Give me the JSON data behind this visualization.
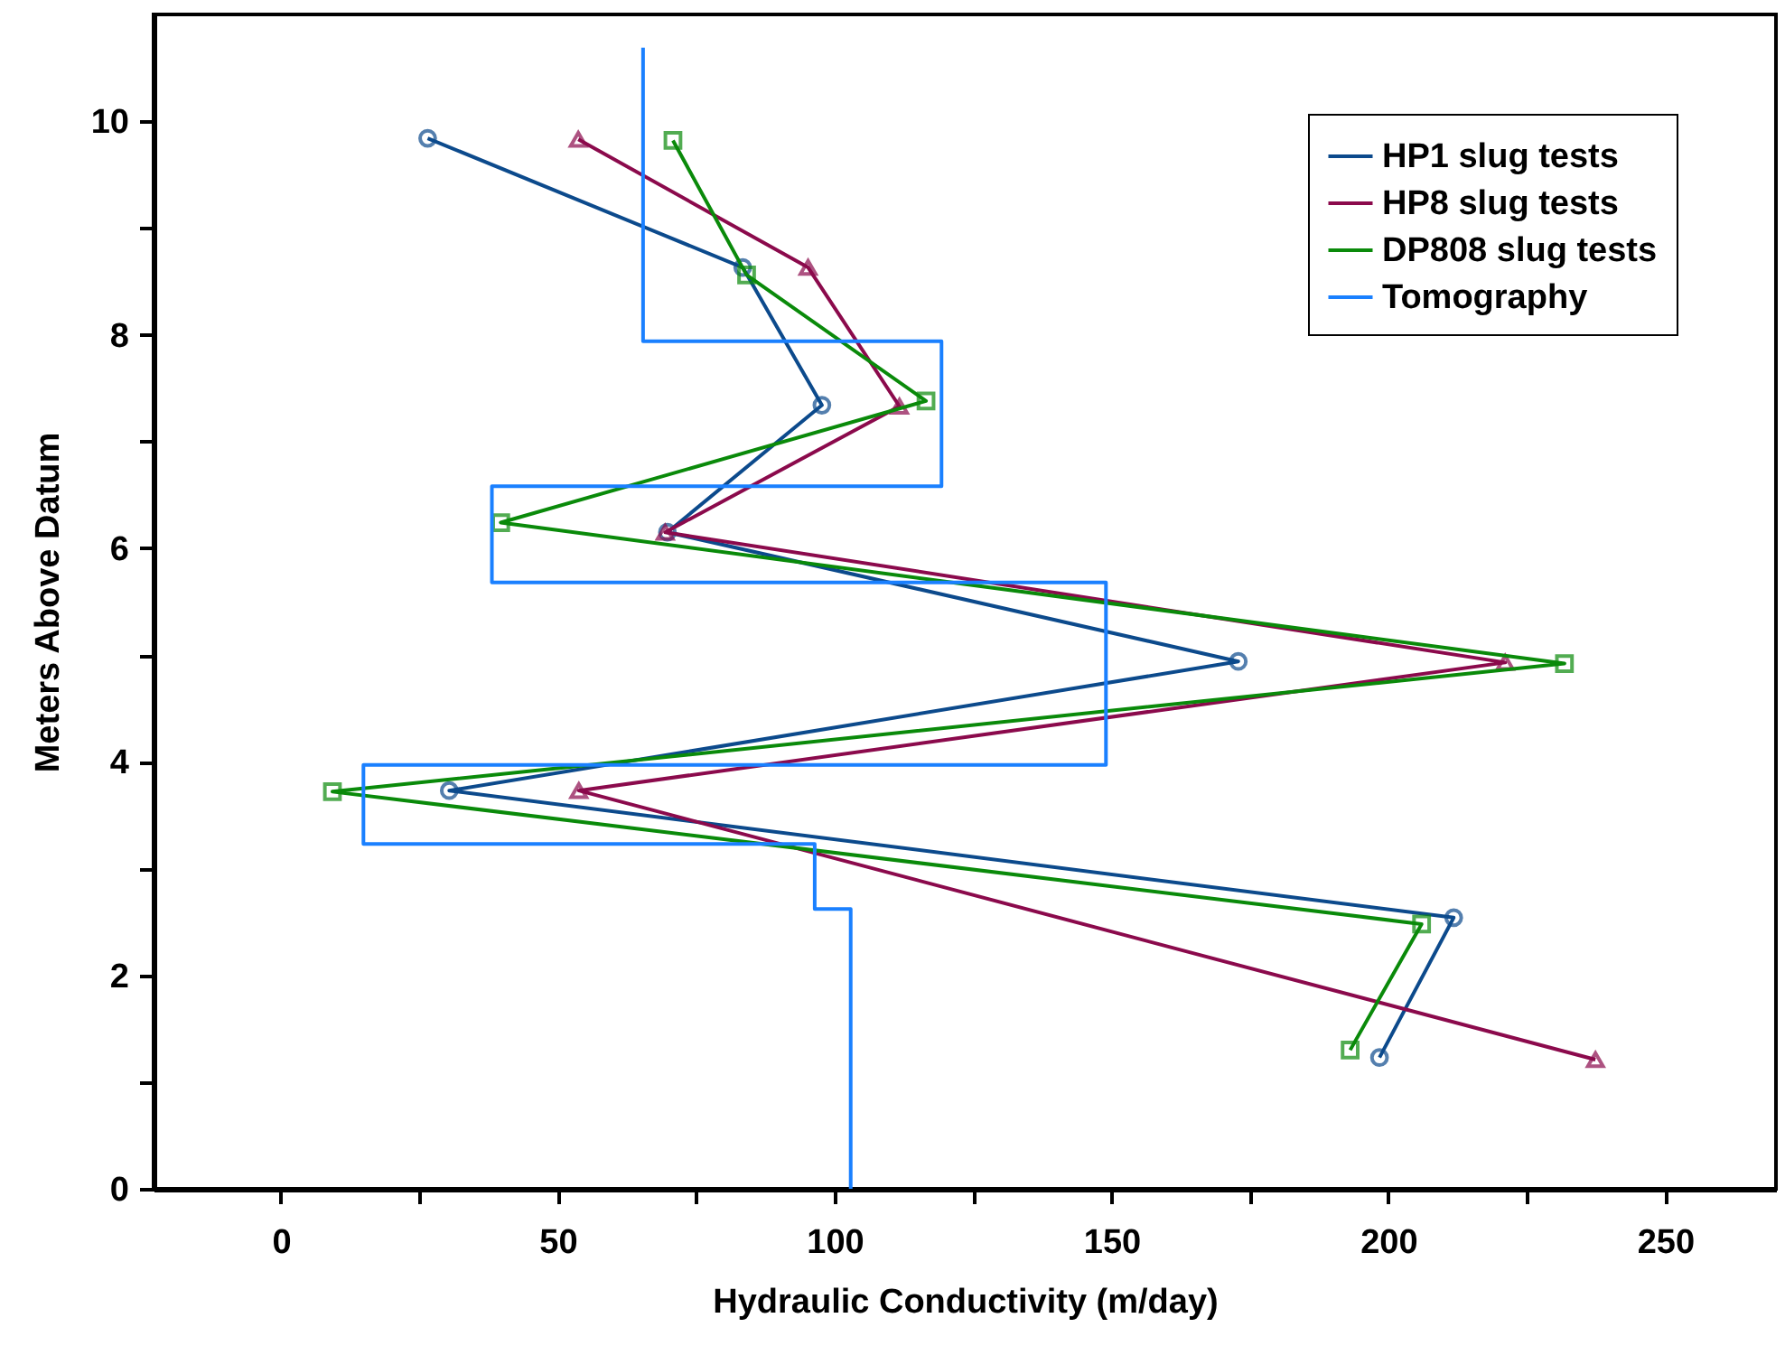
{
  "chart_data": {
    "type": "line",
    "xlabel": "Hydraulic Conductivity (m/day)",
    "ylabel": "Meters Above Datum",
    "xlim": [
      -23,
      270
    ],
    "ylim": [
      0,
      11
    ],
    "xticks": [
      0,
      {
        "value": 25,
        "label": null
      },
      50,
      {
        "value": 75,
        "label": null
      },
      100,
      {
        "value": 125,
        "label": null
      },
      150,
      {
        "value": 175,
        "label": null
      },
      200,
      {
        "value": 225,
        "label": null
      },
      250
    ],
    "yticks": [
      0,
      {
        "value": 1,
        "label": null
      },
      2,
      {
        "value": 3,
        "label": null
      },
      4,
      {
        "value": 5,
        "label": null
      },
      6,
      {
        "value": 7,
        "label": null
      },
      8,
      {
        "value": 9,
        "label": null
      },
      10
    ],
    "legend": "top right",
    "grid": false,
    "line_style": "solid",
    "series": [
      {
        "name": "HP1 slug tests",
        "color": "#0c4a8c",
        "marker": "circle",
        "x": [
          26.5,
          83.4,
          97.7,
          69.8,
          172.9,
          30.4,
          211.8,
          198.4
        ],
        "values": [
          9.84,
          8.63,
          7.34,
          6.15,
          4.94,
          3.73,
          2.54,
          1.23
        ]
      },
      {
        "name": "HP8 slug tests",
        "color": "#8b0a4c",
        "marker": "triangle",
        "x": [
          53.7,
          95.2,
          111.7,
          69.4,
          221.1,
          53.8,
          237.4
        ],
        "values": [
          9.83,
          8.63,
          7.33,
          6.15,
          4.93,
          3.73,
          1.21
        ]
      },
      {
        "name": "DP808 slug tests",
        "color": "#0a8a0a",
        "marker": "square",
        "x": [
          70.8,
          84.1,
          116.5,
          39.7,
          231.8,
          9.3,
          206.0,
          193.1
        ],
        "values": [
          9.82,
          8.56,
          7.38,
          6.24,
          4.92,
          3.72,
          2.48,
          1.3
        ]
      },
      {
        "name": "Tomography",
        "color": "#1a80ff",
        "marker": "none",
        "x": [
          65.4,
          65.4,
          119.3,
          119.3,
          38.1,
          38.1,
          149.0,
          149.0,
          14.9,
          14.9,
          96.4,
          96.4,
          102.9,
          102.9
        ],
        "values": [
          10.69,
          7.94,
          7.94,
          6.58,
          6.58,
          5.68,
          5.68,
          3.97,
          3.97,
          3.23,
          3.23,
          2.62,
          2.62,
          0
        ]
      }
    ]
  }
}
